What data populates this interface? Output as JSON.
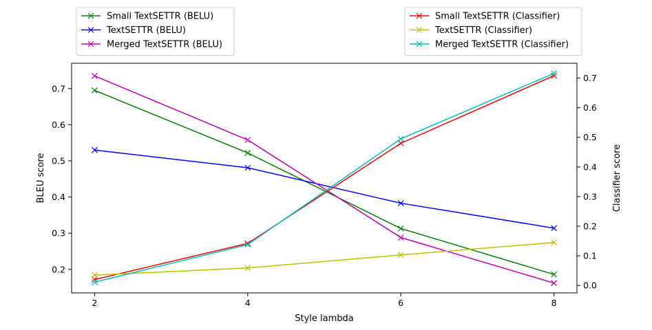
{
  "chart_data": {
    "type": "line",
    "xlabel": "Style lambda",
    "ylabel_left": "BLEU score",
    "ylabel_right": "Classifier score",
    "x": [
      2,
      4,
      6,
      8
    ],
    "xticks": [
      "2",
      "4",
      "6",
      "8"
    ],
    "xlim": [
      1.7,
      8.3
    ],
    "ylim_left": [
      0.135,
      0.77
    ],
    "ylim_right": [
      -0.025,
      0.75
    ],
    "yticks_left": [
      "0.2",
      "0.3",
      "0.4",
      "0.5",
      "0.6",
      "0.7"
    ],
    "yticks_right": [
      "0.0",
      "0.1",
      "0.2",
      "0.3",
      "0.4",
      "0.5",
      "0.6",
      "0.7"
    ],
    "grid": false,
    "series_left": [
      {
        "name": "Small TextSETTR (BELU)",
        "color": "#008000",
        "values": [
          0.695,
          0.522,
          0.313,
          0.186
        ]
      },
      {
        "name": "TextSETTR (BELU)",
        "color": "#0000ff",
        "values": [
          0.53,
          0.481,
          0.383,
          0.314
        ]
      },
      {
        "name": "Merged TextSETTR (BELU)",
        "color": "#bf00bf",
        "values": [
          0.735,
          0.558,
          0.288,
          0.162
        ]
      }
    ],
    "series_right": [
      {
        "name": "Small TextSETTR (Classifier)",
        "color": "#ff0000",
        "values": [
          0.02,
          0.142,
          0.48,
          0.708
        ]
      },
      {
        "name": "TextSETTR (Classifier)",
        "color": "#bfbf00",
        "values": [
          0.035,
          0.059,
          0.103,
          0.145
        ]
      },
      {
        "name": "Merged TextSETTR (Classifier)",
        "color": "#00bfbf",
        "values": [
          0.011,
          0.138,
          0.495,
          0.716
        ]
      }
    ],
    "legend_left_placement": "above-left",
    "legend_right_placement": "above-right"
  }
}
